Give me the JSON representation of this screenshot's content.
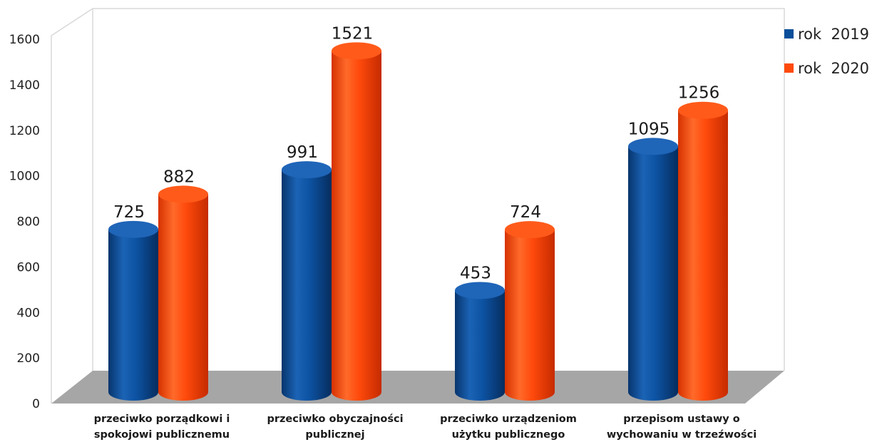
{
  "chart_data": {
    "type": "bar",
    "style": "3d-cylinder",
    "categories": [
      [
        "przeciwko porządkowi i",
        "spokojowi publicznemu"
      ],
      [
        "przeciwko obyczajności",
        "publicznej"
      ],
      [
        "przeciwko urządzeniom",
        "użytku publicznego"
      ],
      [
        "przepisom ustawy o",
        "wychowaniu w trzeźwości"
      ]
    ],
    "series": [
      {
        "name": "rok  2019",
        "color": "#0b4f9a",
        "values": [
          725,
          991,
          453,
          1095
        ]
      },
      {
        "name": "rok  2020",
        "color": "#ff4a0c",
        "values": [
          882,
          1521,
          724,
          1256
        ]
      }
    ],
    "yticks": [
      "0",
      "200",
      "400",
      "600",
      "800",
      "1000",
      "1200",
      "1400",
      "1600"
    ],
    "ylim": [
      0,
      1600
    ],
    "grid": false,
    "data_labels": true,
    "legend": "right",
    "floor_color": "#a6a6a6"
  }
}
